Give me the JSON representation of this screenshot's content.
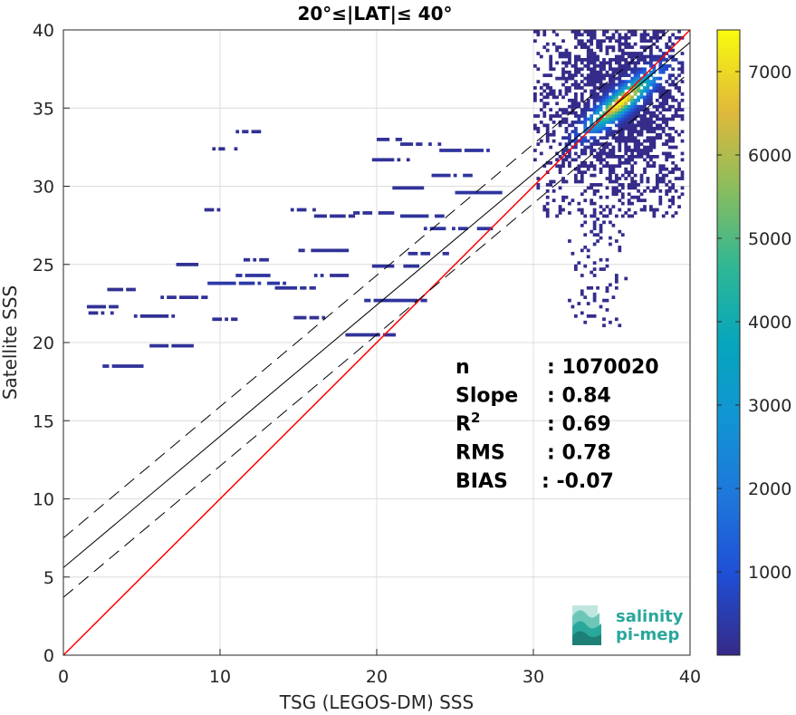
{
  "chart_data": {
    "type": "heatmap",
    "title": "20°≤|LAT|≤ 40°",
    "xlabel": "TSG (LEGOS-DM) SSS",
    "ylabel": "Satellite SSS",
    "xlim": [
      0,
      40
    ],
    "ylim": [
      0,
      40
    ],
    "xticks": [
      "0",
      "10",
      "20",
      "30",
      "40"
    ],
    "yticks": [
      "0",
      "5",
      "10",
      "15",
      "20",
      "25",
      "30",
      "35",
      "40"
    ],
    "grid": true,
    "colorbar": {
      "range": [
        0,
        7500
      ],
      "ticks": [
        "1000",
        "2000",
        "3000",
        "4000",
        "5000",
        "6000",
        "7000"
      ],
      "tick_values": [
        1000,
        2000,
        3000,
        4000,
        5000,
        6000,
        7000
      ],
      "colormap": "parula"
    },
    "lines": [
      {
        "style": "identity",
        "color": "#ff0000",
        "x": [
          0,
          40
        ],
        "y": [
          0,
          40
        ]
      },
      {
        "style": "regression",
        "color": "#000000",
        "x": [
          0,
          40
        ],
        "y": [
          5.6,
          39.2
        ]
      },
      {
        "style": "regression-plus-2sigma",
        "color": "#000000",
        "dash": true,
        "x": [
          0,
          40
        ],
        "y": [
          7.5,
          41.1
        ]
      },
      {
        "style": "regression-minus-2sigma",
        "color": "#000000",
        "dash": true,
        "x": [
          0,
          40
        ],
        "y": [
          3.7,
          37.3
        ]
      }
    ],
    "stats": [
      {
        "label": "n",
        "value": ": 1070020"
      },
      {
        "label": "Slope",
        "value": ": 0.84"
      },
      {
        "label": "R",
        "sup": "2",
        "value": ": 0.69"
      },
      {
        "label": "RMS",
        "value": ": 0.78"
      },
      {
        "label": "BIAS",
        "value": ": -0.07"
      }
    ],
    "dense_core": {
      "x": [
        30,
        39.5
      ],
      "y": [
        28,
        40
      ],
      "peak": [
        35.5,
        35.3
      ],
      "peak_count": 7400
    },
    "sparse_segments": [
      {
        "x0": 1.5,
        "x1": 3.5,
        "y": 22.2,
        "count": 200
      },
      {
        "x0": 1.6,
        "x1": 3.2,
        "y": 21.8,
        "count": 180
      },
      {
        "x0": 2.5,
        "x1": 5.5,
        "y": 18.4,
        "count": 220
      },
      {
        "x0": 5.5,
        "x1": 8.5,
        "y": 19.7,
        "count": 200
      },
      {
        "x0": 4.5,
        "x1": 7.0,
        "y": 21.6,
        "count": 160
      },
      {
        "x0": 6.0,
        "x1": 9.0,
        "y": 22.8,
        "count": 200
      },
      {
        "x0": 2.8,
        "x1": 4.5,
        "y": 23.3,
        "count": 150
      },
      {
        "x0": 9.0,
        "x1": 14.0,
        "y": 23.7,
        "count": 400
      },
      {
        "x0": 11.0,
        "x1": 13.0,
        "y": 24.2,
        "count": 300
      },
      {
        "x0": 7.0,
        "x1": 8.5,
        "y": 24.9,
        "count": 150
      },
      {
        "x0": 11.5,
        "x1": 13.0,
        "y": 25.2,
        "count": 200
      },
      {
        "x0": 9.5,
        "x1": 11.0,
        "y": 21.4,
        "count": 160
      },
      {
        "x0": 13.5,
        "x1": 16.5,
        "y": 23.4,
        "count": 250
      },
      {
        "x0": 14.5,
        "x1": 16.5,
        "y": 21.5,
        "count": 180
      },
      {
        "x0": 15.0,
        "x1": 18.0,
        "y": 25.8,
        "count": 200
      },
      {
        "x0": 16.0,
        "x1": 18.0,
        "y": 24.2,
        "count": 180
      },
      {
        "x0": 18.0,
        "x1": 21.0,
        "y": 20.4,
        "count": 220
      },
      {
        "x0": 19.0,
        "x1": 23.0,
        "y": 22.6,
        "count": 250
      },
      {
        "x0": 19.5,
        "x1": 22.5,
        "y": 24.8,
        "count": 220
      },
      {
        "x0": 22.0,
        "x1": 24.5,
        "y": 25.6,
        "count": 250
      },
      {
        "x0": 14.5,
        "x1": 16.0,
        "y": 28.4,
        "count": 180
      },
      {
        "x0": 16.0,
        "x1": 18.5,
        "y": 28.0,
        "count": 200
      },
      {
        "x0": 18.5,
        "x1": 21.0,
        "y": 28.2,
        "count": 220
      },
      {
        "x0": 21.5,
        "x1": 24.5,
        "y": 28.0,
        "count": 250
      },
      {
        "x0": 21.0,
        "x1": 23.0,
        "y": 29.8,
        "count": 220
      },
      {
        "x0": 23.5,
        "x1": 26.0,
        "y": 30.6,
        "count": 260
      },
      {
        "x0": 19.5,
        "x1": 22.0,
        "y": 31.6,
        "count": 220
      },
      {
        "x0": 20.0,
        "x1": 21.5,
        "y": 32.9,
        "count": 200
      },
      {
        "x0": 9.5,
        "x1": 11.0,
        "y": 32.3,
        "count": 150
      },
      {
        "x0": 11.0,
        "x1": 13.0,
        "y": 33.4,
        "count": 150
      },
      {
        "x0": 9.0,
        "x1": 10.0,
        "y": 28.4,
        "count": 150
      },
      {
        "x0": 23.0,
        "x1": 27.5,
        "y": 27.2,
        "count": 300
      },
      {
        "x0": 24.0,
        "x1": 27.0,
        "y": 32.2,
        "count": 260
      },
      {
        "x0": 25.0,
        "x1": 28.0,
        "y": 29.5,
        "count": 300
      },
      {
        "x0": 21.5,
        "x1": 24.0,
        "y": 32.6,
        "count": 220
      }
    ],
    "logo_text": [
      "salinity",
      "pi-mep"
    ]
  }
}
